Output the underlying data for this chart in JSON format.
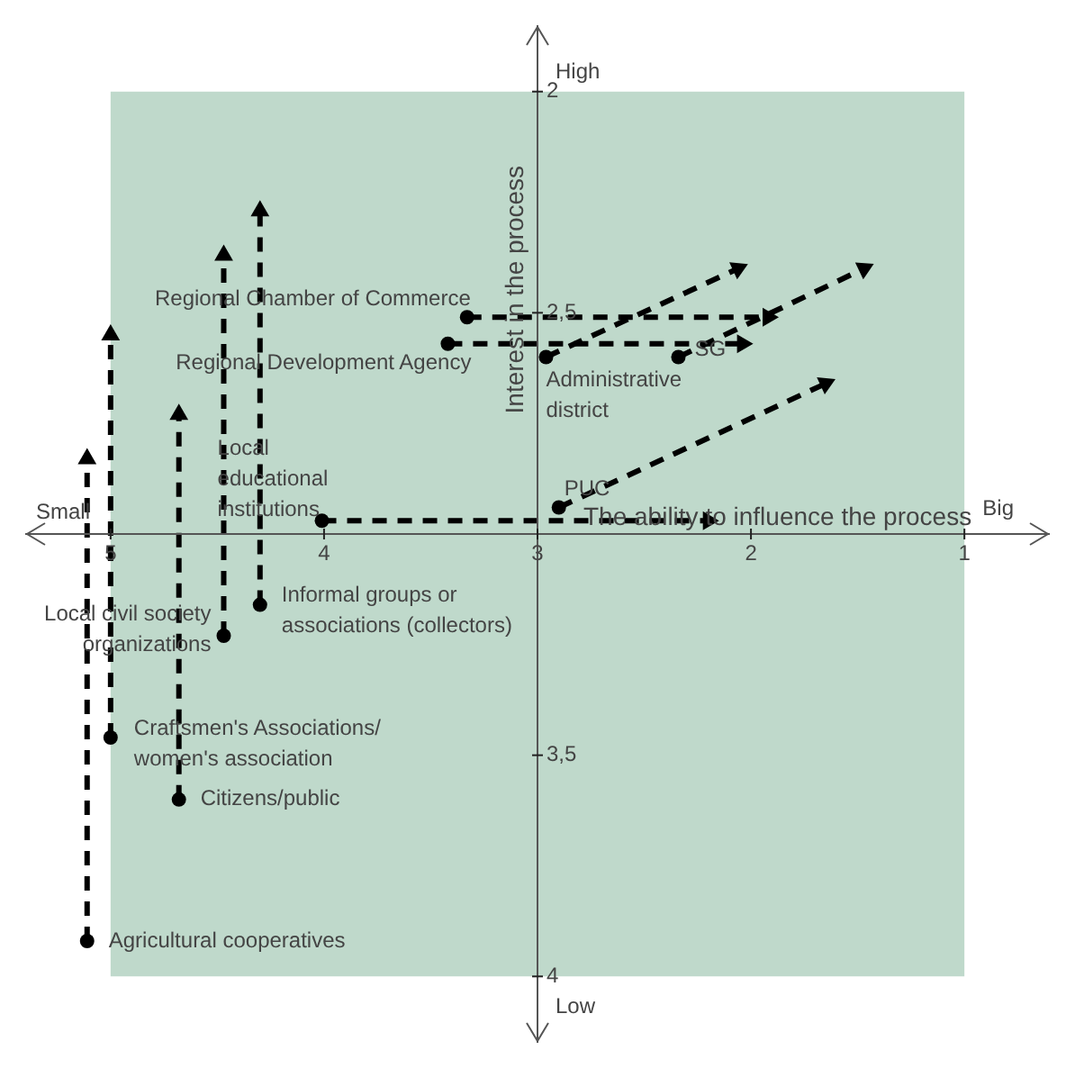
{
  "chart_data": {
    "type": "line",
    "xlabel": "The ability to influence the process",
    "ylabel": "Interest in the process",
    "xlim": [
      5.4,
      0.6
    ],
    "ylim": [
      4.15,
      1.85
    ],
    "xticks": [
      5,
      4,
      3,
      2,
      1
    ],
    "yticks": [
      2,
      {
        "value": 2.5,
        "label": "2,5"
      },
      {
        "value": 3.5,
        "label": "3,5"
      },
      4
    ],
    "line_style": "dashed",
    "marker": "circle",
    "bands": [
      {
        "axis": "x",
        "from": 5,
        "to": 1,
        "color": "#bfd9cb"
      }
    ],
    "annotations": [
      "Small",
      "Big",
      "High",
      "Low"
    ],
    "series": [
      {
        "name": "Regional Chamber of Commerce",
        "type": "line",
        "color": "#000000",
        "x": [
          3.33,
          1.92
        ],
        "values": [
          2.51,
          2.51
        ]
      },
      {
        "name": "Regional Development Agency",
        "type": "line",
        "color": "#000000",
        "x": [
          3.42,
          2.04
        ],
        "values": [
          2.57,
          2.57
        ]
      },
      {
        "name": "Administrative district",
        "type": "line",
        "color": "#000000",
        "x": [
          2.96,
          2.06
        ],
        "values": [
          2.6,
          2.4
        ]
      },
      {
        "name": "SG",
        "type": "line",
        "color": "#000000",
        "x": [
          2.34,
          1.47
        ],
        "values": [
          2.6,
          2.4
        ]
      },
      {
        "name": "PUC",
        "type": "line",
        "color": "#000000",
        "x": [
          2.9,
          1.65
        ],
        "values": [
          2.94,
          2.66
        ]
      },
      {
        "name": "Local educational institutions",
        "type": "line",
        "color": "#000000",
        "x": [
          4.01,
          2.2
        ],
        "values": [
          2.97,
          2.97
        ]
      },
      {
        "name": "Informal groups or associations (collectors)",
        "type": "line",
        "color": "#000000",
        "x": [
          4.3,
          4.3
        ],
        "values": [
          3.16,
          2.27
        ]
      },
      {
        "name": "Local civil society organizations",
        "type": "line",
        "color": "#000000",
        "x": [
          4.47,
          4.47
        ],
        "values": [
          3.23,
          2.37
        ]
      },
      {
        "name": "Craftsmen's Associations/ women's association",
        "type": "line",
        "color": "#000000",
        "x": [
          5.0,
          5.0
        ],
        "values": [
          3.46,
          2.55
        ]
      },
      {
        "name": "Citizens/public",
        "type": "line",
        "color": "#000000",
        "x": [
          4.68,
          4.68
        ],
        "values": [
          3.6,
          2.73
        ]
      },
      {
        "name": "Agricultural cooperatives",
        "type": "line",
        "color": "#000000",
        "x": [
          5.11,
          5.11
        ],
        "values": [
          3.92,
          2.83
        ]
      }
    ]
  }
}
